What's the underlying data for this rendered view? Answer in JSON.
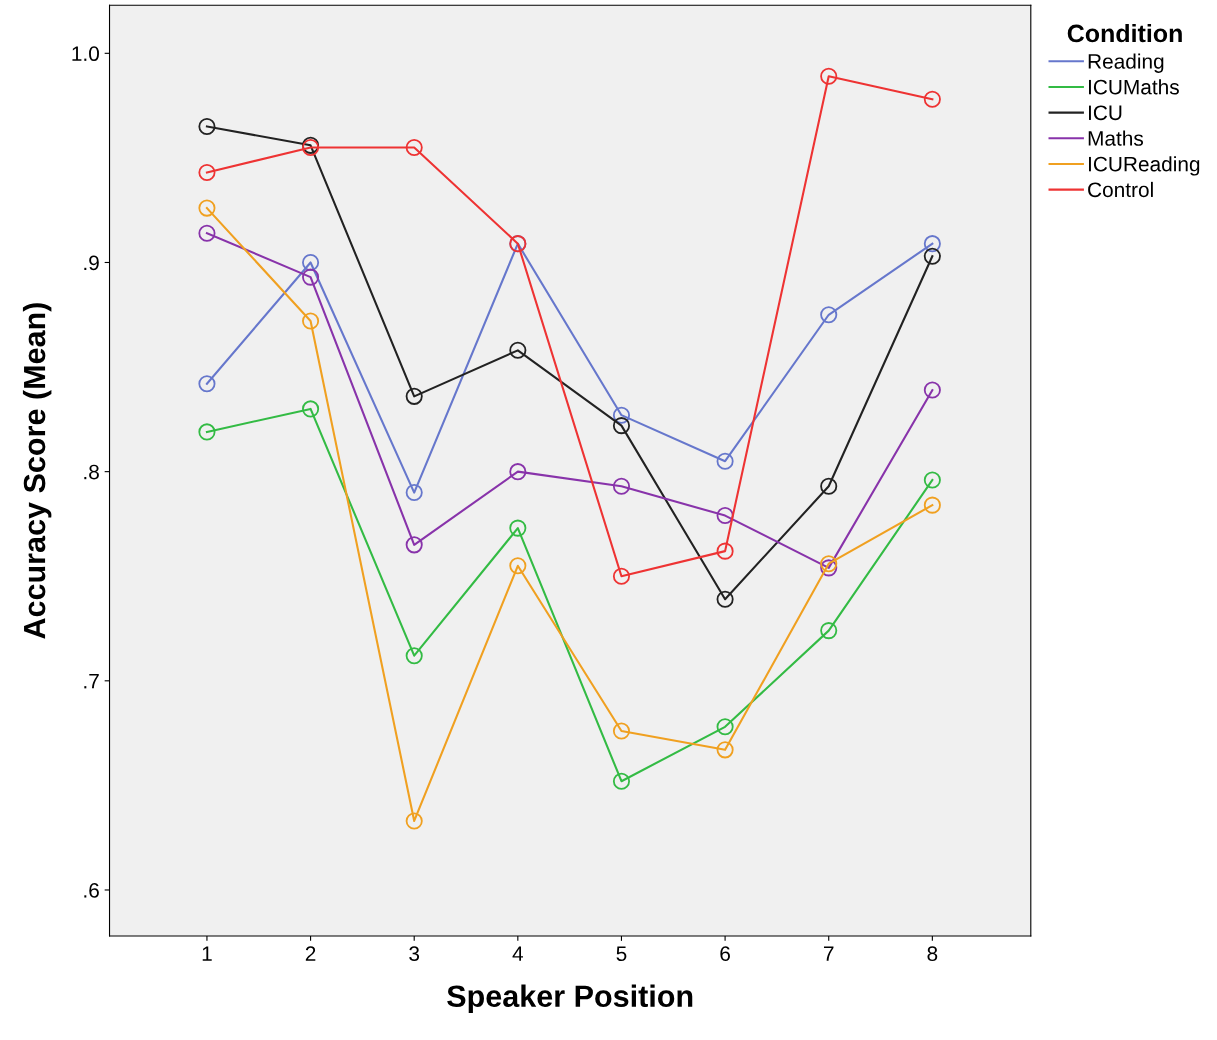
{
  "chart_data": {
    "type": "line",
    "xlabel": "Speaker Position",
    "ylabel": "Accuracy Score (Mean)",
    "legend_title": "Condition",
    "legend": "right",
    "marker": "circle",
    "grid": false,
    "x": [
      1,
      2,
      3,
      4,
      5,
      6,
      7,
      8
    ],
    "xlim": [
      0.06,
      8.95
    ],
    "xticks": [
      1,
      2,
      3,
      4,
      5,
      6,
      7,
      8
    ],
    "ylim": [
      0.578,
      1.023
    ],
    "yticks": [
      {
        "value": 0.6,
        "label": ".6"
      },
      {
        "value": 0.7,
        "label": ".7"
      },
      {
        "value": 0.8,
        "label": ".8"
      },
      {
        "value": 0.9,
        "label": ".9"
      },
      {
        "value": 1.0,
        "label": "1.0"
      }
    ],
    "series": [
      {
        "name": "Reading",
        "color": "#6677cc",
        "values": [
          0.842,
          0.9,
          0.79,
          0.909,
          0.827,
          0.805,
          0.875,
          0.909
        ]
      },
      {
        "name": "ICUMaths",
        "color": "#33bb44",
        "values": [
          0.819,
          0.83,
          0.712,
          0.773,
          0.652,
          0.678,
          0.724,
          0.796
        ]
      },
      {
        "name": "ICU",
        "color": "#222222",
        "values": [
          0.965,
          0.956,
          0.836,
          0.858,
          0.822,
          0.739,
          0.793,
          0.903
        ]
      },
      {
        "name": "Maths",
        "color": "#8833aa",
        "values": [
          0.914,
          0.893,
          0.765,
          0.8,
          0.793,
          0.779,
          0.754,
          0.839
        ]
      },
      {
        "name": "ICUReading",
        "color": "#f0a020",
        "values": [
          0.926,
          0.872,
          0.633,
          0.755,
          0.676,
          0.667,
          0.756,
          0.784
        ]
      },
      {
        "name": "Control",
        "color": "#ee3333",
        "values": [
          0.943,
          0.955,
          0.955,
          0.909,
          0.75,
          0.762,
          0.989,
          0.978
        ]
      }
    ]
  }
}
